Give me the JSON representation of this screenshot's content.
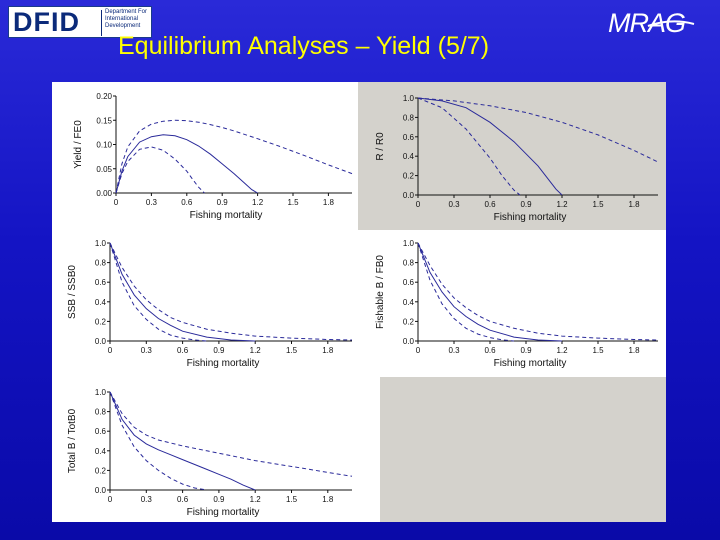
{
  "header": {
    "title": "Equilibrium Analyses – Yield (5/7)",
    "logo_left_big": "DFID",
    "logo_left_small": [
      "Department For",
      "International",
      "Development"
    ],
    "logo_right": "MRAG"
  },
  "colors": {
    "background": "#1414c4",
    "title": "#ffff00",
    "line": "#2a2a9a",
    "empty_cell": "#d4d2cc"
  },
  "chart_data": [
    {
      "type": "line",
      "ylabel": "Yield / FE0",
      "xlabel": "Fishing mortality",
      "xlim": [
        0,
        2.0
      ],
      "ylim": [
        0,
        0.2
      ],
      "xticks": [
        "0",
        "0.3",
        "0.6",
        "0.9",
        "1.2",
        "1.5",
        "1.8"
      ],
      "yticks": [
        "0.00",
        "0.05",
        "0.10",
        "0.15",
        "0.20"
      ],
      "series": [
        {
          "style": "solid",
          "x": [
            0,
            0.05,
            0.1,
            0.2,
            0.3,
            0.4,
            0.5,
            0.6,
            0.7,
            0.8,
            0.9,
            1.0,
            1.1,
            1.15,
            1.2
          ],
          "y": [
            0,
            0.045,
            0.075,
            0.105,
            0.116,
            0.12,
            0.118,
            0.11,
            0.097,
            0.08,
            0.06,
            0.04,
            0.018,
            0.007,
            0
          ]
        },
        {
          "style": "dashed",
          "x": [
            0,
            0.05,
            0.1,
            0.2,
            0.3,
            0.4,
            0.5,
            0.6,
            0.7,
            0.8,
            0.9,
            1.0,
            1.2,
            1.4,
            1.6,
            1.8,
            2.0
          ],
          "y": [
            0,
            0.06,
            0.095,
            0.128,
            0.142,
            0.148,
            0.15,
            0.149,
            0.146,
            0.141,
            0.135,
            0.128,
            0.112,
            0.095,
            0.077,
            0.058,
            0.04
          ]
        },
        {
          "style": "dashed",
          "x": [
            0,
            0.05,
            0.1,
            0.2,
            0.3,
            0.4,
            0.5,
            0.6,
            0.65,
            0.7,
            0.75
          ],
          "y": [
            0,
            0.04,
            0.065,
            0.09,
            0.095,
            0.088,
            0.07,
            0.045,
            0.028,
            0.012,
            0
          ]
        }
      ]
    },
    {
      "type": "line",
      "ylabel": "R / R0",
      "xlabel": "Fishing mortality",
      "xlim": [
        0,
        2.0
      ],
      "ylim": [
        0,
        1.0
      ],
      "xticks": [
        "0",
        "0.3",
        "0.6",
        "0.9",
        "1.2",
        "1.5",
        "1.8"
      ],
      "yticks": [
        "0.0",
        "0.2",
        "0.4",
        "0.6",
        "0.8",
        "1.0"
      ],
      "series": [
        {
          "style": "solid",
          "x": [
            0,
            0.2,
            0.4,
            0.6,
            0.8,
            1.0,
            1.1,
            1.15,
            1.2
          ],
          "y": [
            1.0,
            0.97,
            0.9,
            0.75,
            0.55,
            0.3,
            0.14,
            0.06,
            0
          ]
        },
        {
          "style": "dashed",
          "x": [
            0,
            0.3,
            0.6,
            0.9,
            1.2,
            1.5,
            1.8,
            2.0
          ],
          "y": [
            1.0,
            0.97,
            0.92,
            0.85,
            0.75,
            0.62,
            0.46,
            0.34
          ]
        },
        {
          "style": "dashed",
          "x": [
            0,
            0.2,
            0.4,
            0.6,
            0.7,
            0.8,
            0.85
          ],
          "y": [
            1.0,
            0.9,
            0.68,
            0.38,
            0.2,
            0.05,
            0
          ]
        }
      ]
    },
    {
      "type": "line",
      "ylabel": "SSB / SSB0",
      "xlabel": "Fishing mortality",
      "xlim": [
        0,
        2.0
      ],
      "ylim": [
        0,
        1.0
      ],
      "xticks": [
        "0",
        "0.3",
        "0.6",
        "0.9",
        "1.2",
        "1.5",
        "1.8"
      ],
      "yticks": [
        "0.0",
        "0.2",
        "0.4",
        "0.6",
        "0.8",
        "1.0"
      ],
      "series": [
        {
          "style": "solid",
          "x": [
            0,
            0.1,
            0.2,
            0.3,
            0.4,
            0.5,
            0.6,
            0.8,
            1.0,
            1.2
          ],
          "y": [
            1.0,
            0.68,
            0.47,
            0.33,
            0.23,
            0.16,
            0.1,
            0.04,
            0.01,
            0
          ]
        },
        {
          "style": "dashed",
          "x": [
            0,
            0.1,
            0.2,
            0.3,
            0.4,
            0.5,
            0.6,
            0.8,
            1.0,
            1.2,
            1.5,
            1.8,
            2.0
          ],
          "y": [
            1.0,
            0.75,
            0.56,
            0.42,
            0.32,
            0.24,
            0.19,
            0.12,
            0.08,
            0.05,
            0.03,
            0.015,
            0.01
          ]
        },
        {
          "style": "dashed",
          "x": [
            0,
            0.1,
            0.2,
            0.3,
            0.4,
            0.5,
            0.6,
            0.7,
            0.8
          ],
          "y": [
            1.0,
            0.6,
            0.36,
            0.22,
            0.12,
            0.06,
            0.03,
            0.01,
            0
          ]
        }
      ]
    },
    {
      "type": "line",
      "ylabel": "Fishable B / FB0",
      "xlabel": "Fishing mortality",
      "xlim": [
        0,
        2.0
      ],
      "ylim": [
        0,
        1.0
      ],
      "xticks": [
        "0",
        "0.3",
        "0.6",
        "0.9",
        "1.2",
        "1.5",
        "1.8"
      ],
      "yticks": [
        "0.0",
        "0.2",
        "0.4",
        "0.6",
        "0.8",
        "1.0"
      ],
      "series": [
        {
          "style": "solid",
          "x": [
            0,
            0.1,
            0.2,
            0.3,
            0.4,
            0.5,
            0.6,
            0.8,
            1.0,
            1.2
          ],
          "y": [
            1.0,
            0.7,
            0.5,
            0.35,
            0.25,
            0.17,
            0.11,
            0.04,
            0.01,
            0
          ]
        },
        {
          "style": "dashed",
          "x": [
            0,
            0.1,
            0.2,
            0.3,
            0.4,
            0.5,
            0.6,
            0.8,
            1.0,
            1.2,
            1.5,
            1.8,
            2.0
          ],
          "y": [
            1.0,
            0.77,
            0.58,
            0.44,
            0.34,
            0.26,
            0.2,
            0.13,
            0.08,
            0.05,
            0.03,
            0.015,
            0.01
          ]
        },
        {
          "style": "dashed",
          "x": [
            0,
            0.1,
            0.2,
            0.3,
            0.4,
            0.5,
            0.6,
            0.7,
            0.8
          ],
          "y": [
            1.0,
            0.62,
            0.38,
            0.23,
            0.13,
            0.07,
            0.035,
            0.012,
            0
          ]
        }
      ]
    },
    {
      "type": "line",
      "ylabel": "Total B / TotB0",
      "xlabel": "Fishing mortality",
      "xlim": [
        0,
        2.0
      ],
      "ylim": [
        0,
        1.0
      ],
      "xticks": [
        "0",
        "0.3",
        "0.6",
        "0.9",
        "1.2",
        "1.5",
        "1.8"
      ],
      "yticks": [
        "0.0",
        "0.2",
        "0.4",
        "0.6",
        "0.8",
        "1.0"
      ],
      "series": [
        {
          "style": "solid",
          "x": [
            0,
            0.1,
            0.2,
            0.3,
            0.4,
            0.5,
            0.6,
            0.7,
            0.8,
            0.9,
            1.0,
            1.1,
            1.2
          ],
          "y": [
            1.0,
            0.72,
            0.56,
            0.47,
            0.41,
            0.36,
            0.31,
            0.26,
            0.21,
            0.16,
            0.11,
            0.05,
            0
          ]
        },
        {
          "style": "dashed",
          "x": [
            0,
            0.1,
            0.2,
            0.3,
            0.4,
            0.6,
            0.8,
            1.0,
            1.2,
            1.4,
            1.6,
            1.8,
            2.0
          ],
          "y": [
            1.0,
            0.78,
            0.64,
            0.56,
            0.51,
            0.45,
            0.4,
            0.35,
            0.3,
            0.26,
            0.22,
            0.18,
            0.14
          ]
        },
        {
          "style": "dashed",
          "x": [
            0,
            0.1,
            0.2,
            0.3,
            0.4,
            0.5,
            0.6,
            0.7,
            0.8
          ],
          "y": [
            1.0,
            0.66,
            0.44,
            0.3,
            0.2,
            0.12,
            0.06,
            0.02,
            0
          ]
        }
      ]
    }
  ]
}
